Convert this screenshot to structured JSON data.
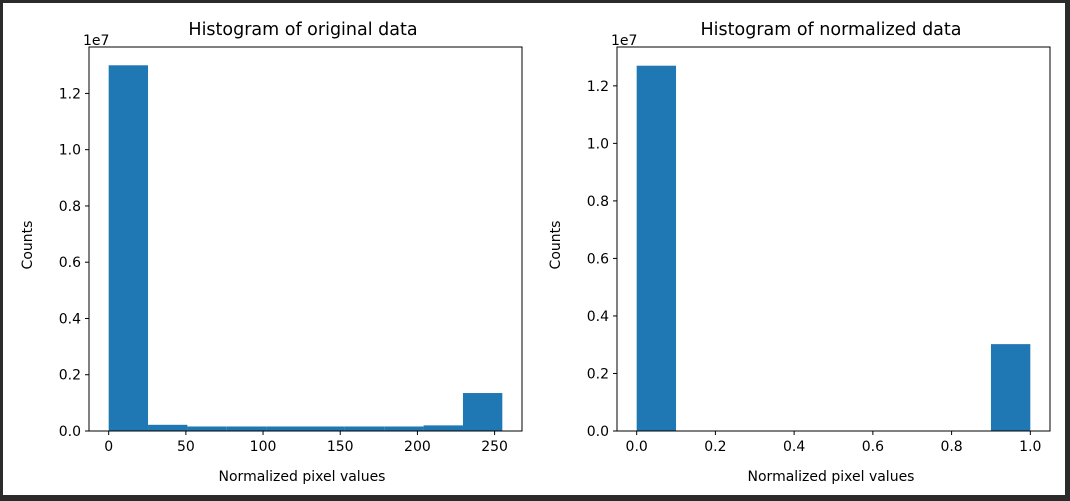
{
  "colors": {
    "bar": "#1f77b4",
    "background": "#ffffff",
    "frame": "#2b2b2b"
  },
  "chart_data": [
    {
      "type": "bar",
      "title": "Histogram of original data",
      "xlabel": "Normalized pixel values",
      "ylabel": "Counts",
      "offset_text": "1e7",
      "xlim": [
        -12.75,
        267.75
      ],
      "ylim": [
        0,
        1.365
      ],
      "xticks": [
        0,
        50,
        100,
        150,
        200,
        250
      ],
      "xtick_labels": [
        "0",
        "50",
        "100",
        "150",
        "200",
        "250"
      ],
      "yticks": [
        0.0,
        0.2,
        0.4,
        0.6,
        0.8,
        1.0,
        1.2
      ],
      "ytick_labels": [
        "0.0",
        "0.2",
        "0.4",
        "0.6",
        "0.8",
        "1.0",
        "1.2"
      ],
      "bin_edges": [
        0,
        25.5,
        51,
        76.5,
        102,
        127.5,
        153,
        178.5,
        204,
        229.5,
        255
      ],
      "values": [
        1.3,
        0.022,
        0.016,
        0.016,
        0.016,
        0.016,
        0.016,
        0.016,
        0.02,
        0.135
      ],
      "units_multiplier": 10000000,
      "grid": false
    },
    {
      "type": "bar",
      "title": "Histogram of normalized data",
      "xlabel": "Normalized pixel values",
      "ylabel": "Counts",
      "offset_text": "1e7",
      "xlim": [
        -0.05,
        1.05
      ],
      "ylim": [
        0,
        1.335
      ],
      "xticks": [
        0.0,
        0.2,
        0.4,
        0.6,
        0.8,
        1.0
      ],
      "xtick_labels": [
        "0.0",
        "0.2",
        "0.4",
        "0.6",
        "0.8",
        "1.0"
      ],
      "yticks": [
        0.0,
        0.2,
        0.4,
        0.6,
        0.8,
        1.0,
        1.2
      ],
      "ytick_labels": [
        "0.0",
        "0.2",
        "0.4",
        "0.6",
        "0.8",
        "1.0",
        "1.2"
      ],
      "bin_edges": [
        0,
        0.1,
        0.2,
        0.3,
        0.4,
        0.5,
        0.6,
        0.7,
        0.8,
        0.9,
        1.0
      ],
      "values": [
        1.27,
        0,
        0,
        0,
        0,
        0,
        0,
        0,
        0,
        0.302
      ],
      "units_multiplier": 10000000,
      "grid": false
    }
  ]
}
